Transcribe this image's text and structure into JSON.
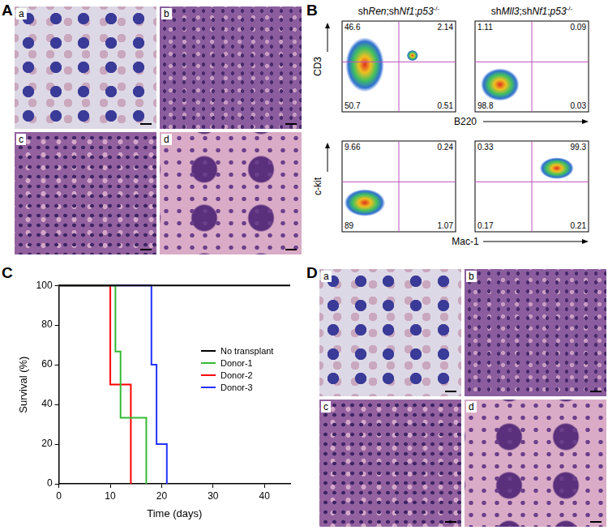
{
  "figure": {
    "panels": [
      {
        "label": "A",
        "images": [
          "a",
          "b",
          "c",
          "d"
        ]
      },
      {
        "label": "B",
        "columns": [
          {
            "title": [
              {
                "text": "sh"
              },
              {
                "text": "Ren",
                "style": "italic"
              },
              {
                "text": ";sh"
              },
              {
                "text": "Nf1",
                "style": "italic"
              },
              {
                "text": ";"
              },
              {
                "text": "p53",
                "style": "italic"
              },
              {
                "text": "-/-",
                "style": "superscript"
              }
            ]
          },
          {
            "title": [
              {
                "text": "sh"
              },
              {
                "text": "Mll3",
                "style": "italic"
              },
              {
                "text": ";sh"
              },
              {
                "text": "Nf1",
                "style": "italic"
              },
              {
                "text": ";"
              },
              {
                "text": "p53",
                "style": "italic"
              },
              {
                "text": "-/-",
                "style": "superscript"
              }
            ]
          }
        ],
        "rows": [
          {
            "x_label": "B220",
            "y_label": "CD3",
            "quadrants": [
              {
                "upper_left": 46.6,
                "upper_right": 2.14,
                "lower_left": 50.7,
                "lower_right": 0.51
              },
              {
                "upper_left": 1.11,
                "upper_right": 0.09,
                "lower_left": 98.8,
                "lower_right": 0.03
              }
            ]
          },
          {
            "x_label": "Mac-1",
            "y_label": "c-kit",
            "quadrants": [
              {
                "upper_left": 9.66,
                "upper_right": 0.24,
                "lower_left": 89,
                "lower_right": 1.07
              },
              {
                "upper_left": 0.33,
                "upper_right": 99.3,
                "lower_left": 0.17,
                "lower_right": 0.21
              }
            ]
          }
        ]
      },
      {
        "label": "C"
      },
      {
        "label": "D",
        "images": [
          "a",
          "b",
          "c",
          "d"
        ]
      }
    ]
  },
  "chart_data": {
    "type": "line",
    "x_label": "Time (days)",
    "y_label": "Survival (%)",
    "xlim": [
      0,
      45
    ],
    "xticks": [
      0,
      10,
      20,
      30,
      40
    ],
    "ylim": [
      0,
      100
    ],
    "yticks": [
      0,
      20,
      40,
      60,
      80,
      100
    ],
    "grid": false,
    "legend": "right",
    "line_style": "step",
    "series": [
      {
        "name": "No transplant",
        "color": "#000000",
        "x": [
          0,
          45
        ],
        "values": [
          100,
          100
        ]
      },
      {
        "name": "Donor-1",
        "color": "#33bb33",
        "x": [
          0,
          11,
          12,
          17
        ],
        "values": [
          100,
          66.7,
          33.3,
          0
        ]
      },
      {
        "name": "Donor-2",
        "color": "#ff0000",
        "x": [
          0,
          10,
          14
        ],
        "values": [
          100,
          50,
          0
        ]
      },
      {
        "name": "Donor-3",
        "color": "#2233ff",
        "x": [
          0,
          18,
          19,
          21
        ],
        "values": [
          100,
          60,
          20,
          0
        ]
      }
    ]
  }
}
